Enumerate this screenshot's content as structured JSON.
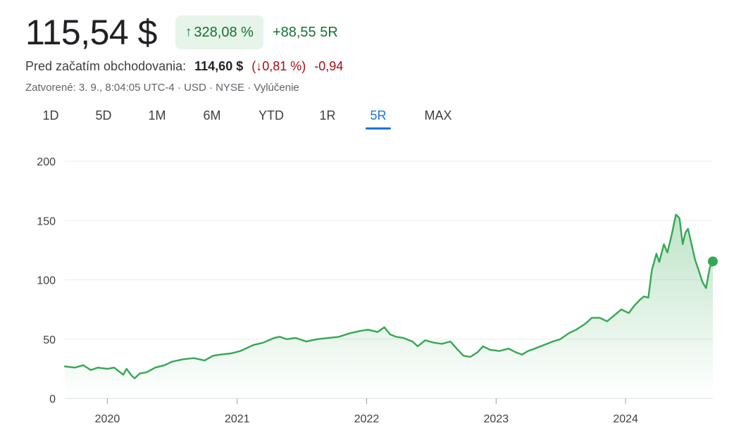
{
  "quote": {
    "price": "115,54 $",
    "change_pct": "328,08 %",
    "change_abs": "+88,55",
    "change_period": "5R",
    "premarket_label": "Pred začatím obchodovania:",
    "premarket_price": "114,60 $",
    "premarket_pct": "0,81 %",
    "premarket_abs": "-0,94",
    "meta": "Zatvorené: 3. 9., 8:04:05 UTC-4 · USD · NYSE · Vylúčenie"
  },
  "ranges": [
    "1D",
    "5D",
    "1M",
    "6M",
    "YTD",
    "1R",
    "5R",
    "MAX"
  ],
  "selected_range": "5R",
  "colors": {
    "up": "#137333",
    "down": "#a50e0e",
    "line": "#34a853",
    "accent": "#1a73e8",
    "chip_bg": "#e6f4ea"
  },
  "chart_data": {
    "type": "area",
    "title": "",
    "xlabel": "",
    "ylabel": "",
    "ylim": [
      0,
      200
    ],
    "yticks": [
      0,
      50,
      100,
      150,
      200
    ],
    "xticks": [
      "2020",
      "2021",
      "2022",
      "2023",
      "2024"
    ],
    "xlim": [
      "2019-09-03",
      "2024-09-03"
    ],
    "grid": "horizontal",
    "legend": "none",
    "series": [
      {
        "x": [
          "2019-09-03",
          "2019-10-01",
          "2019-10-25",
          "2019-11-15",
          "2019-12-05",
          "2020-01-01",
          "2020-01-20",
          "2020-02-15",
          "2020-02-24",
          "2020-03-10",
          "2020-03-18",
          "2020-04-01",
          "2020-04-20",
          "2020-05-15",
          "2020-06-10",
          "2020-07-01",
          "2020-08-01",
          "2020-09-01",
          "2020-10-01",
          "2020-10-25",
          "2020-11-15",
          "2020-12-15",
          "2021-01-10",
          "2021-02-15",
          "2021-03-15",
          "2021-04-15",
          "2021-05-01",
          "2021-05-20",
          "2021-06-15",
          "2021-07-15",
          "2021-08-15",
          "2021-09-15",
          "2021-10-15",
          "2021-11-15",
          "2021-12-15",
          "2022-01-05",
          "2022-02-01",
          "2022-02-20",
          "2022-03-08",
          "2022-03-25",
          "2022-04-15",
          "2022-05-10",
          "2022-05-25",
          "2022-06-15",
          "2022-07-10",
          "2022-08-01",
          "2022-08-25",
          "2022-09-15",
          "2022-10-01",
          "2022-10-20",
          "2022-11-10",
          "2022-11-25",
          "2022-12-15",
          "2023-01-10",
          "2023-02-05",
          "2023-02-25",
          "2023-03-15",
          "2023-04-01",
          "2023-04-20",
          "2023-05-15",
          "2023-06-10",
          "2023-07-01",
          "2023-07-25",
          "2023-08-15",
          "2023-09-10",
          "2023-09-28",
          "2023-10-20",
          "2023-11-10",
          "2023-11-30",
          "2023-12-20",
          "2024-01-10",
          "2024-01-25",
          "2024-02-10",
          "2024-02-22",
          "2024-03-05",
          "2024-03-15",
          "2024-03-28",
          "2024-04-05",
          "2024-04-18",
          "2024-04-28",
          "2024-05-10",
          "2024-05-22",
          "2024-06-01",
          "2024-06-10",
          "2024-06-18",
          "2024-06-25",
          "2024-07-05",
          "2024-07-15",
          "2024-07-25",
          "2024-08-05",
          "2024-08-15",
          "2024-08-25",
          "2024-09-03"
        ],
        "y": [
          27,
          26,
          28,
          24,
          26,
          25,
          26,
          20,
          25,
          19,
          17,
          21,
          22,
          26,
          28,
          31,
          33,
          34,
          32,
          36,
          37,
          38,
          40,
          45,
          47,
          51,
          52,
          50,
          51,
          48,
          50,
          51,
          52,
          55,
          57,
          58,
          56,
          60,
          54,
          52,
          51,
          48,
          44,
          49,
          47,
          46,
          48,
          41,
          36,
          35,
          39,
          44,
          41,
          40,
          42,
          39,
          37,
          40,
          42,
          45,
          48,
          50,
          55,
          58,
          63,
          68,
          68,
          65,
          70,
          75,
          72,
          78,
          83,
          86,
          85,
          108,
          122,
          115,
          130,
          123,
          138,
          155,
          152,
          130,
          140,
          143,
          130,
          117,
          108,
          98,
          93,
          110,
          115.54
        ]
      }
    ]
  }
}
